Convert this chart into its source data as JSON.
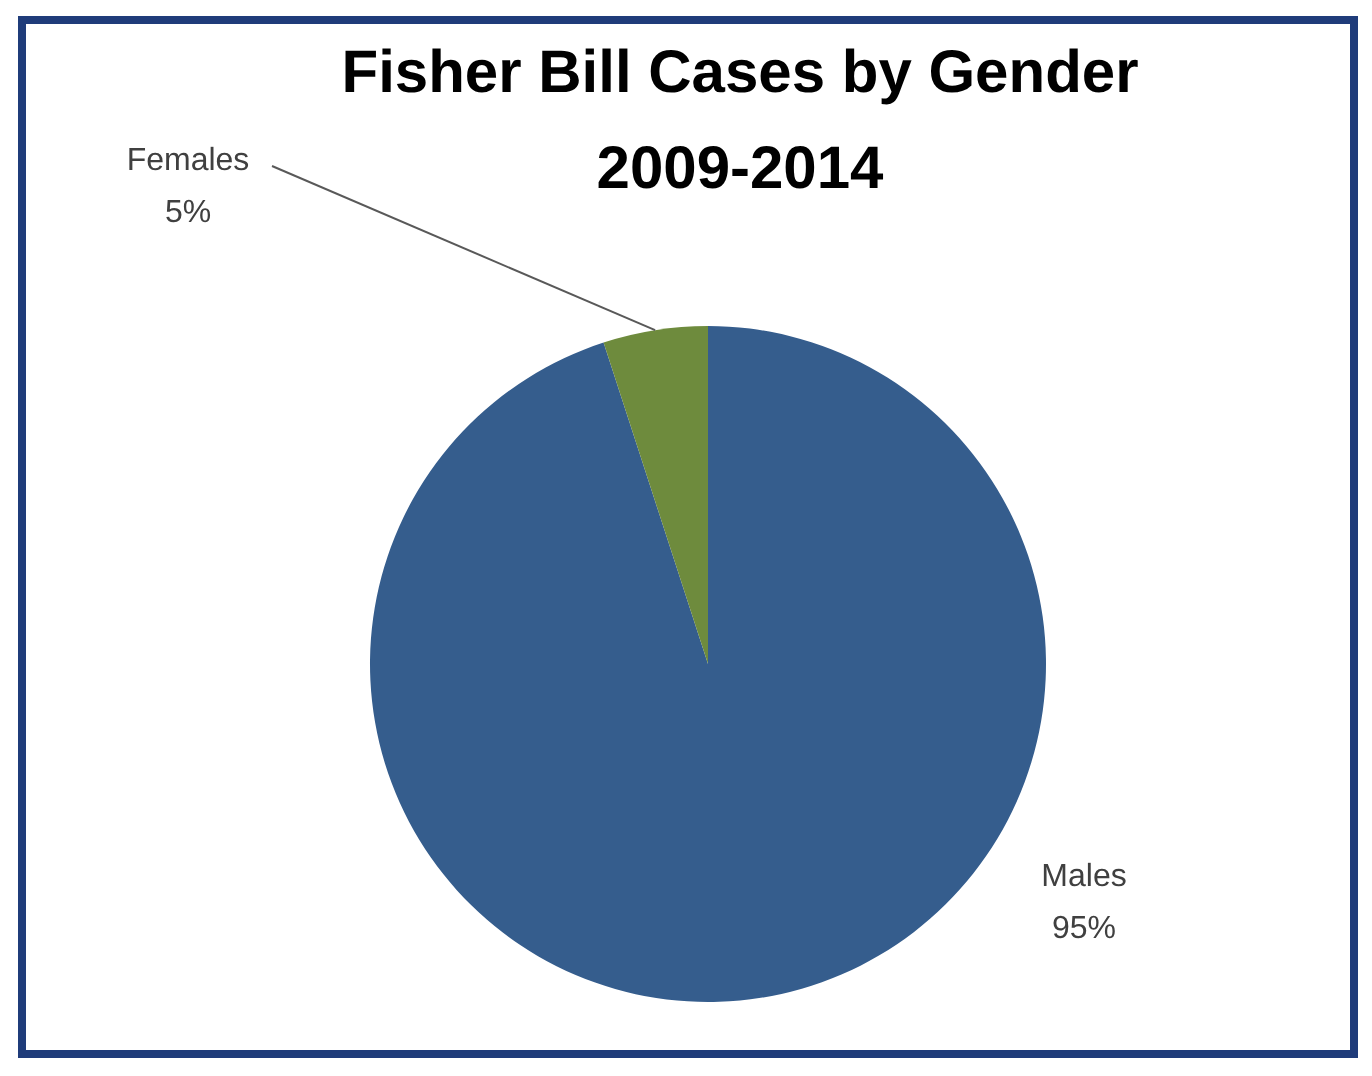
{
  "chart_data": {
    "type": "pie",
    "title": "Fisher Bill Cases by Gender 2009-2014",
    "categories": [
      "Males",
      "Females"
    ],
    "values": [
      95,
      5
    ],
    "colors": [
      "#355d8d",
      "#6e8b3d"
    ],
    "value_labels": [
      "95%",
      "5%"
    ]
  }
}
